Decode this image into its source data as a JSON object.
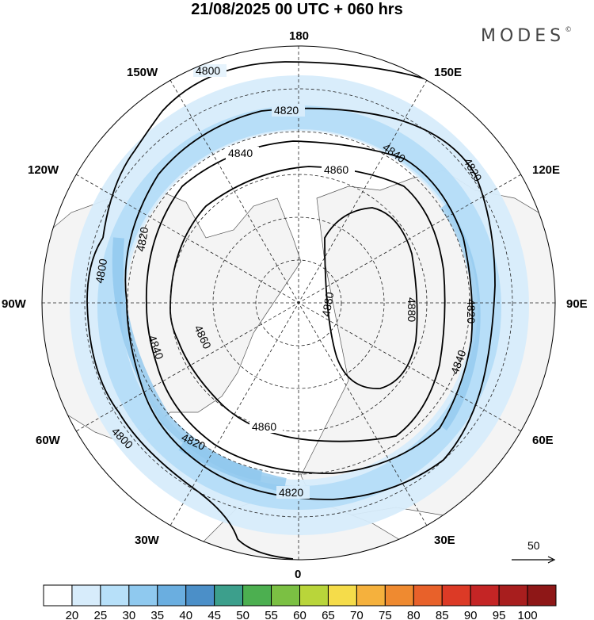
{
  "header": {
    "title": "21/08/2025  00 UTC  + 060 hrs",
    "logo": "MODES",
    "logo_mark": "©"
  },
  "map": {
    "projection": "north-polar-stereographic",
    "longitude_labels": [
      {
        "text": "180",
        "lon": 180
      },
      {
        "text": "150E",
        "lon": 150
      },
      {
        "text": "120E",
        "lon": 120
      },
      {
        "text": "90E",
        "lon": 90
      },
      {
        "text": "60E",
        "lon": 60
      },
      {
        "text": "30E",
        "lon": 30
      },
      {
        "text": "0",
        "lon": 0
      },
      {
        "text": "30W",
        "lon": -30
      },
      {
        "text": "60W",
        "lon": -60
      },
      {
        "text": "90W",
        "lon": -90
      },
      {
        "text": "120W",
        "lon": -120
      },
      {
        "text": "150W",
        "lon": -150
      }
    ],
    "contour_labels": [
      "4800",
      "4820",
      "4840",
      "4860",
      "4880",
      "4800",
      "4820",
      "4840",
      "4860",
      "4880",
      "4800",
      "4820",
      "4840",
      "4860",
      "4820",
      "4840",
      "4820",
      "4820"
    ],
    "wind_reference": {
      "value": "50"
    },
    "colors": {
      "land": "#f4f4f4",
      "shade_light": "#d7ecfb",
      "shade_mid": "#b3dcf7",
      "shade_dark": "#8ec7ee",
      "contour": "#000000"
    }
  },
  "colorbar": {
    "labels": [
      "20",
      "25",
      "30",
      "35",
      "40",
      "45",
      "50",
      "55",
      "60",
      "65",
      "70",
      "75",
      "80",
      "85",
      "90",
      "95",
      "100"
    ],
    "colors": [
      "#ffffff",
      "#d7ecfb",
      "#b7e0f9",
      "#8fc9ef",
      "#6aaee0",
      "#4b8fc8",
      "#3c9f8c",
      "#4caf50",
      "#7bc043",
      "#b9d53a",
      "#f5dc4a",
      "#f5b13d",
      "#ef8a30",
      "#e8612a",
      "#dc3a26",
      "#c42525",
      "#a81e1e",
      "#8e1717"
    ]
  }
}
